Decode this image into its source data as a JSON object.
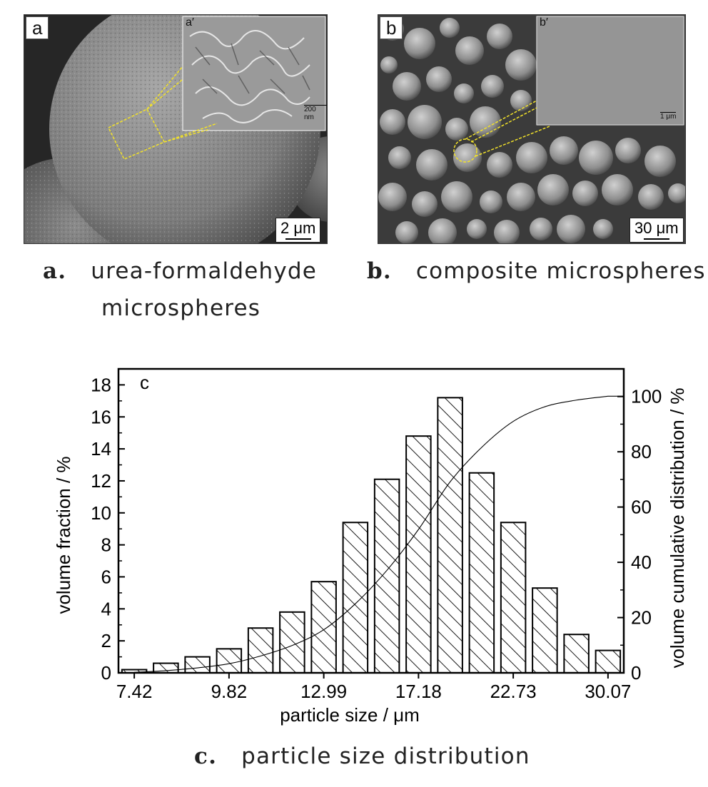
{
  "panel_a": {
    "tag": "a",
    "inset_tag": "a′",
    "inset_scale": "200 nm",
    "scale": "2 μm",
    "caption_letter": "a.",
    "caption_line1": "urea-formaldehyde",
    "caption_line2": "microspheres"
  },
  "panel_b": {
    "tag": "b",
    "inset_tag": "b′",
    "inset_scale": "1 μm",
    "scale": "30 μm",
    "caption_letter": "b.",
    "caption_text": "composite microspheres"
  },
  "panel_c": {
    "caption_letter": "c.",
    "caption_text": "particle size distribution"
  },
  "colors": {
    "sem_dark": "#2f2f2f",
    "sem_sphere": "#8a8a8a",
    "annotation": "#f2e22a"
  },
  "chart_data": {
    "type": "bar",
    "panel_label": "c",
    "xlabel": "particle size / μm",
    "ylabel": "volume fraction / %",
    "y2label": "volume cumulative distribution / %",
    "ylim": [
      0,
      19
    ],
    "y2lim": [
      0,
      110
    ],
    "yticks": [
      0,
      2,
      4,
      6,
      8,
      10,
      12,
      14,
      16,
      18
    ],
    "y2ticks": [
      0,
      20,
      40,
      60,
      80,
      100
    ],
    "xtick_labels": [
      "7.42",
      "9.82",
      "12.99",
      "17.18",
      "22.73",
      "30.07"
    ],
    "xtick_positions": [
      0.5,
      3.5,
      6.5,
      9.5,
      12.5,
      15.5
    ],
    "bar_fill": "hatched",
    "values": [
      0.2,
      0.6,
      1.0,
      1.5,
      2.8,
      3.8,
      5.7,
      9.4,
      12.1,
      14.8,
      17.2,
      12.5,
      9.4,
      5.3,
      2.4,
      1.4
    ],
    "cumulative": [
      0.2,
      0.8,
      1.8,
      3.3,
      6.1,
      9.9,
      15.6,
      25.0,
      37.1,
      51.9,
      69.1,
      81.6,
      91.0,
      96.3,
      98.7,
      100.1
    ]
  }
}
